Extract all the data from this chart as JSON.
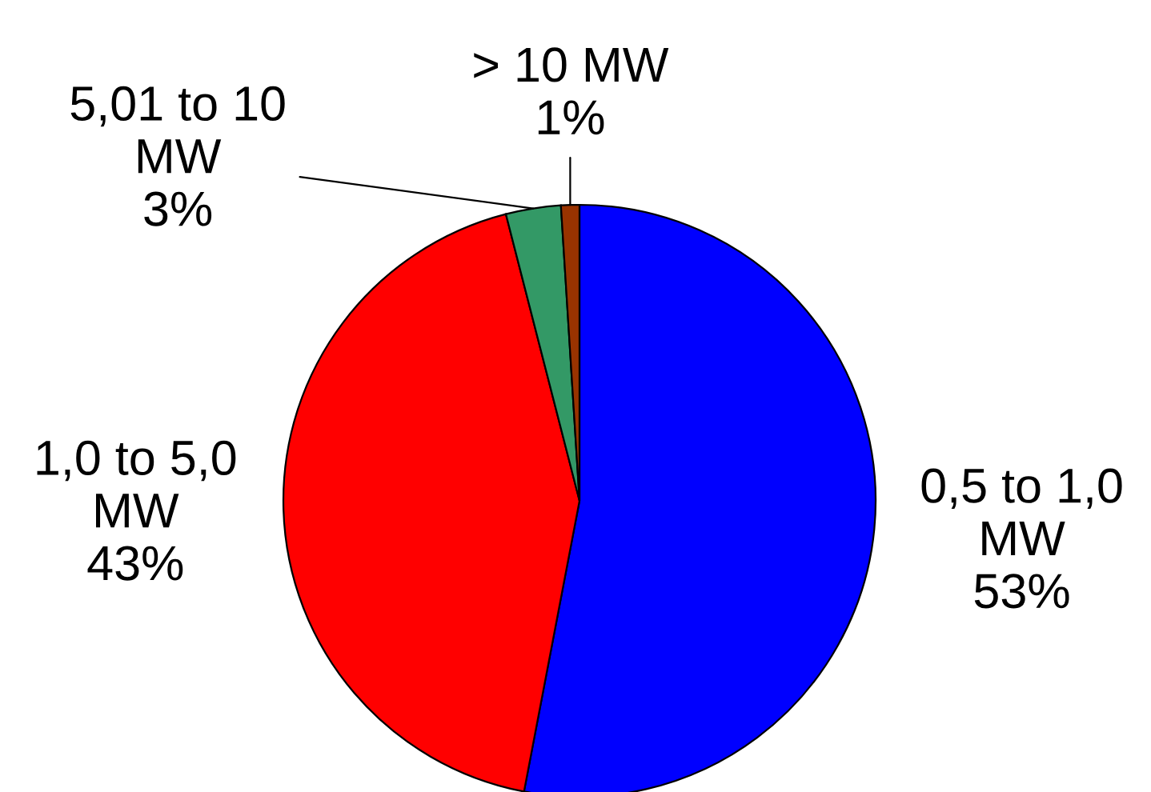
{
  "chart_data": {
    "type": "pie",
    "categories": [
      "0,5 to 1,0\nMW",
      "1,0 to 5,0\nMW",
      "5,01 to 10\nMW",
      "> 10 MW"
    ],
    "values": [
      53,
      43,
      3,
      1
    ],
    "value_labels": [
      "53%",
      "43%",
      "3%",
      "1%"
    ],
    "colors": [
      "#0000ff",
      "#ff0000",
      "#339966",
      "#993300"
    ],
    "legend": false
  }
}
